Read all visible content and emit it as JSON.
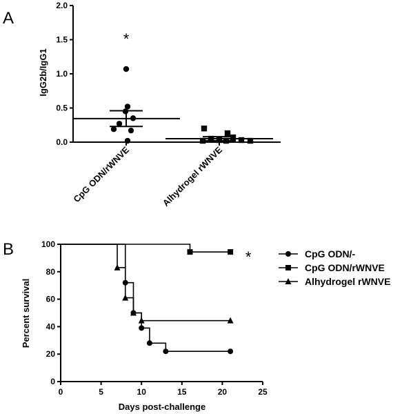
{
  "chart_data": [
    {
      "type": "scatter",
      "panel_label": "A",
      "ylabel": "IgG2b/IgG1",
      "ylim": [
        0.0,
        2.0
      ],
      "yticks": [
        "0.0",
        "0.5",
        "1.0",
        "1.5",
        "2.0"
      ],
      "categories": [
        "CpG ODN/rWNVE",
        "Alhydrogel rWNVE"
      ],
      "series": [
        {
          "category": "CpG ODN/rWNVE",
          "marker": "circle",
          "values": [
            1.07,
            0.52,
            0.45,
            0.35,
            0.27,
            0.19,
            0.17,
            0.02
          ],
          "mean": 0.345,
          "sem": [
            0.23,
            0.46
          ],
          "annotation": "*"
        },
        {
          "category": "Alhydrogel rWNVE",
          "marker": "square",
          "values": [
            0.2,
            0.13,
            0.07,
            0.05,
            0.03,
            0.03,
            0.02,
            0.02,
            0.02
          ],
          "mean": 0.05,
          "sem": [
            0.02,
            0.08
          ],
          "annotation": ""
        }
      ]
    },
    {
      "type": "line",
      "step": true,
      "panel_label": "B",
      "xlabel": "Days post-challenge",
      "ylabel": "Percent survival",
      "xlim": [
        0,
        25
      ],
      "ylim": [
        0,
        100
      ],
      "xticks": [
        "0",
        "5",
        "10",
        "15",
        "20",
        "25"
      ],
      "yticks": [
        "0",
        "20",
        "40",
        "60",
        "80",
        "100"
      ],
      "series": [
        {
          "name": "CpG ODN/-",
          "marker": "circle",
          "x": [
            0,
            8,
            9,
            10,
            11,
            13,
            21
          ],
          "y": [
            100,
            72,
            50,
            39,
            28,
            22,
            22
          ],
          "markers_at": [
            8,
            9,
            10,
            11,
            13,
            21
          ]
        },
        {
          "name": "CpG ODN/rWNVE",
          "marker": "square",
          "x": [
            0,
            16,
            21
          ],
          "y": [
            100,
            94.4,
            94.4
          ],
          "markers_at": [
            16,
            21
          ],
          "annotation": "*"
        },
        {
          "name": "Alhydrogel rWNVE",
          "marker": "triangle",
          "x": [
            0,
            7,
            8,
            9,
            10,
            21
          ],
          "y": [
            100,
            83,
            61,
            50,
            44.4,
            44.4
          ],
          "markers_at": [
            7,
            8,
            9,
            10,
            21
          ]
        }
      ],
      "legend": "right"
    }
  ]
}
